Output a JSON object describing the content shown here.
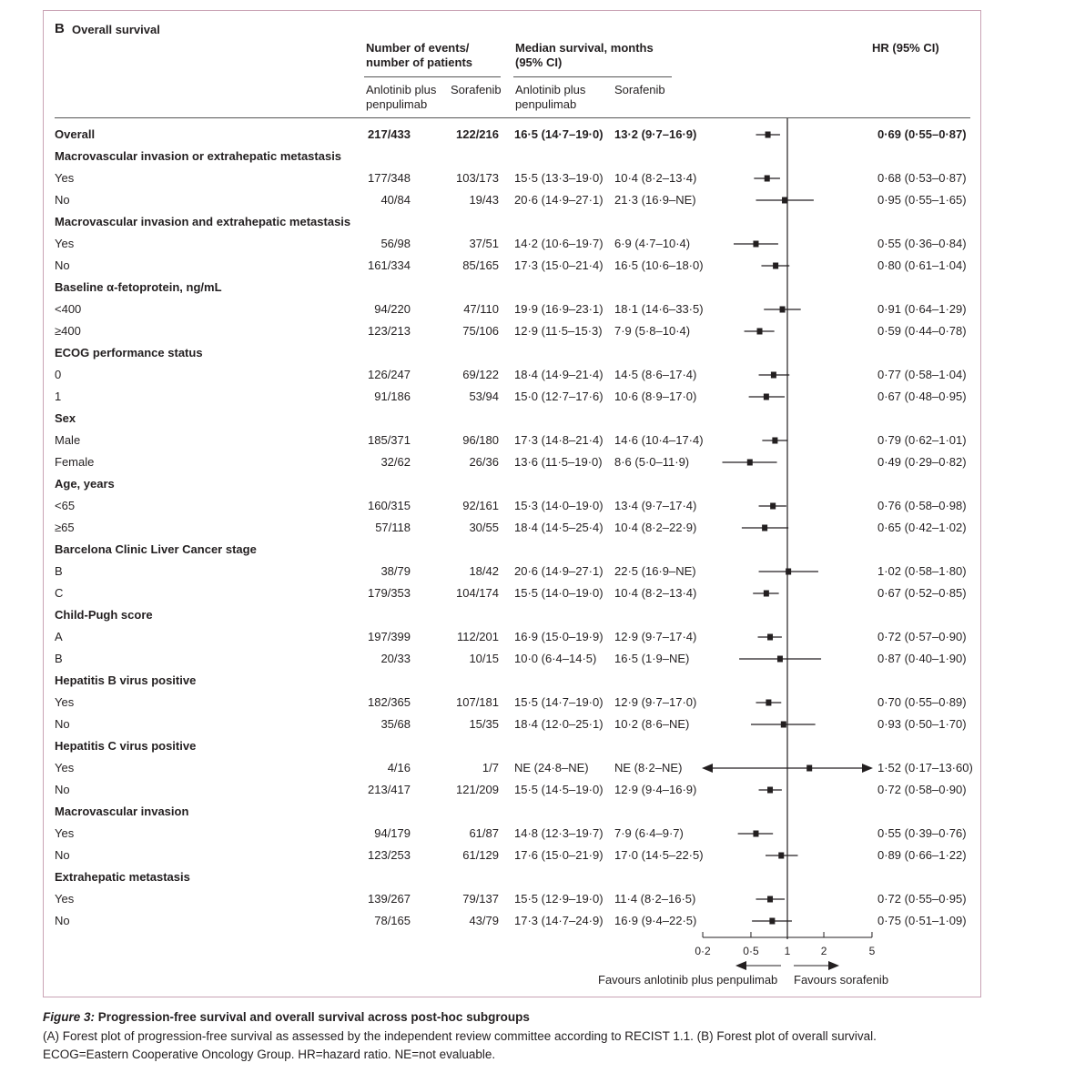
{
  "panel_label": "B",
  "panel_title": "Overall survival",
  "headers": {
    "events": "Number of events/ number of patients",
    "median": "Median survival, months (95% CI)",
    "hr": "HR (95% CI)",
    "arm_a": "Anlotinib plus penpulimab",
    "arm_b": "Sorafenib"
  },
  "chart_data": {
    "type": "forest",
    "x_scale": "log",
    "xlim": [
      0.2,
      5
    ],
    "reference_line": 1,
    "x_ticks": [
      "0·2",
      "0·5",
      "1",
      "2",
      "5"
    ],
    "x_tick_values": [
      0.2,
      0.5,
      1,
      2,
      5
    ],
    "favours_left": "Favours anlotinib plus penpulimab",
    "favours_right": "Favours sorafenib",
    "rows": [
      {
        "label": "Overall",
        "bold": true,
        "ev_a": "217/433",
        "ev_b": "122/216",
        "med_a": "16·5 (14·7–19·0)",
        "med_b": "13·2 (9·7–16·9)",
        "hr": 0.69,
        "lo": 0.55,
        "hi": 0.87,
        "hr_text": "0·69 (0·55–0·87)"
      },
      {
        "label": "Macrovascular invasion or extrahepatic metastasis",
        "header": true
      },
      {
        "label": "Yes",
        "ev_a": "177/348",
        "ev_b": "103/173",
        "med_a": "15·5 (13·3–19·0)",
        "med_b": "10·4 (8·2–13·4)",
        "hr": 0.68,
        "lo": 0.53,
        "hi": 0.87,
        "hr_text": "0·68 (0·53–0·87)"
      },
      {
        "label": "No",
        "ev_a": "40/84",
        "ev_b": "19/43",
        "med_a": "20·6 (14·9–27·1)",
        "med_b": "21·3 (16·9–NE)",
        "hr": 0.95,
        "lo": 0.55,
        "hi": 1.65,
        "hr_text": "0·95 (0·55–1·65)"
      },
      {
        "label": "Macrovascular invasion and extrahepatic metastasis",
        "header": true
      },
      {
        "label": "Yes",
        "ev_a": "56/98",
        "ev_b": "37/51",
        "med_a": "14·2 (10·6–19·7)",
        "med_b": "6·9 (4·7–10·4)",
        "hr": 0.55,
        "lo": 0.36,
        "hi": 0.84,
        "hr_text": "0·55 (0·36–0·84)"
      },
      {
        "label": "No",
        "ev_a": "161/334",
        "ev_b": "85/165",
        "med_a": "17·3 (15·0–21·4)",
        "med_b": "16·5 (10·6–18·0)",
        "hr": 0.8,
        "lo": 0.61,
        "hi": 1.04,
        "hr_text": "0·80 (0·61–1·04)"
      },
      {
        "label": "Baseline α-fetoprotein, ng/mL",
        "header": true
      },
      {
        "label": "<400",
        "ev_a": "94/220",
        "ev_b": "47/110",
        "med_a": "19·9 (16·9–23·1)",
        "med_b": "18·1 (14·6–33·5)",
        "hr": 0.91,
        "lo": 0.64,
        "hi": 1.29,
        "hr_text": "0·91 (0·64–1·29)"
      },
      {
        "label": "≥400",
        "ev_a": "123/213",
        "ev_b": "75/106",
        "med_a": "12·9 (11·5–15·3)",
        "med_b": "7·9 (5·8–10·4)",
        "hr": 0.59,
        "lo": 0.44,
        "hi": 0.78,
        "hr_text": "0·59 (0·44–0·78)"
      },
      {
        "label": "ECOG performance status",
        "header": true
      },
      {
        "label": "0",
        "ev_a": "126/247",
        "ev_b": "69/122",
        "med_a": "18·4 (14·9–21·4)",
        "med_b": "14·5 (8·6–17·4)",
        "hr": 0.77,
        "lo": 0.58,
        "hi": 1.04,
        "hr_text": "0·77 (0·58–1·04)"
      },
      {
        "label": "1",
        "ev_a": "91/186",
        "ev_b": "53/94",
        "med_a": "15·0 (12·7–17·6)",
        "med_b": "10·6 (8·9–17·0)",
        "hr": 0.67,
        "lo": 0.48,
        "hi": 0.95,
        "hr_text": "0·67 (0·48–0·95)"
      },
      {
        "label": "Sex",
        "header": true
      },
      {
        "label": "Male",
        "ev_a": "185/371",
        "ev_b": "96/180",
        "med_a": "17·3 (14·8–21·4)",
        "med_b": "14·6 (10·4–17·4)",
        "hr": 0.79,
        "lo": 0.62,
        "hi": 1.01,
        "hr_text": "0·79 (0·62–1·01)"
      },
      {
        "label": "Female",
        "ev_a": "32/62",
        "ev_b": "26/36",
        "med_a": "13·6 (11·5–19·0)",
        "med_b": "8·6 (5·0–11·9)",
        "hr": 0.49,
        "lo": 0.29,
        "hi": 0.82,
        "hr_text": "0·49 (0·29–0·82)"
      },
      {
        "label": "Age, years",
        "header": true
      },
      {
        "label": "<65",
        "ev_a": "160/315",
        "ev_b": "92/161",
        "med_a": "15·3 (14·0–19·0)",
        "med_b": "13·4 (9·7–17·4)",
        "hr": 0.76,
        "lo": 0.58,
        "hi": 0.98,
        "hr_text": "0·76 (0·58–0·98)"
      },
      {
        "label": "≥65",
        "ev_a": "57/118",
        "ev_b": "30/55",
        "med_a": "18·4 (14·5–25·4)",
        "med_b": "10·4 (8·2–22·9)",
        "hr": 0.65,
        "lo": 0.42,
        "hi": 1.02,
        "hr_text": "0·65 (0·42–1·02)"
      },
      {
        "label": "Barcelona Clinic Liver Cancer stage",
        "header": true
      },
      {
        "label": "B",
        "ev_a": "38/79",
        "ev_b": "18/42",
        "med_a": "20·6 (14·9–27·1)",
        "med_b": "22·5 (16·9–NE)",
        "hr": 1.02,
        "lo": 0.58,
        "hi": 1.8,
        "hr_text": "1·02 (0·58–1·80)"
      },
      {
        "label": "C",
        "ev_a": "179/353",
        "ev_b": "104/174",
        "med_a": "15·5 (14·0–19·0)",
        "med_b": "10·4 (8·2–13·4)",
        "hr": 0.67,
        "lo": 0.52,
        "hi": 0.85,
        "hr_text": "0·67 (0·52–0·85)"
      },
      {
        "label": "Child-Pugh score",
        "header": true
      },
      {
        "label": "A",
        "ev_a": "197/399",
        "ev_b": "112/201",
        "med_a": "16·9 (15·0–19·9)",
        "med_b": "12·9 (9·7–17·4)",
        "hr": 0.72,
        "lo": 0.57,
        "hi": 0.9,
        "hr_text": "0·72 (0·57–0·90)"
      },
      {
        "label": "B",
        "ev_a": "20/33",
        "ev_b": "10/15",
        "med_a": "10·0 (6·4–14·5)",
        "med_b": "16·5 (1·9–NE)",
        "hr": 0.87,
        "lo": 0.4,
        "hi": 1.9,
        "hr_text": "0·87 (0·40–1·90)"
      },
      {
        "label": "Hepatitis B virus positive",
        "header": true
      },
      {
        "label": "Yes",
        "ev_a": "182/365",
        "ev_b": "107/181",
        "med_a": "15·5 (14·7–19·0)",
        "med_b": "12·9 (9·7–17·0)",
        "hr": 0.7,
        "lo": 0.55,
        "hi": 0.89,
        "hr_text": "0·70 (0·55–0·89)"
      },
      {
        "label": "No",
        "ev_a": "35/68",
        "ev_b": "15/35",
        "med_a": "18·4 (12·0–25·1)",
        "med_b": "10·2 (8·6–NE)",
        "hr": 0.93,
        "lo": 0.5,
        "hi": 1.7,
        "hr_text": "0·93 (0·50–1·70)"
      },
      {
        "label": "Hepatitis C virus positive",
        "header": true
      },
      {
        "label": "Yes",
        "ev_a": "4/16",
        "ev_b": "1/7",
        "med_a": "NE (24·8–NE)",
        "med_b": "NE (8·2–NE)",
        "hr": 1.52,
        "lo": 0.17,
        "hi": 13.6,
        "hr_text": "1·52 (0·17–13·60)"
      },
      {
        "label": "No",
        "ev_a": "213/417",
        "ev_b": "121/209",
        "med_a": "15·5 (14·5–19·0)",
        "med_b": "12·9 (9·4–16·9)",
        "hr": 0.72,
        "lo": 0.58,
        "hi": 0.9,
        "hr_text": "0·72 (0·58–0·90)"
      },
      {
        "label": "Macrovascular invasion",
        "header": true
      },
      {
        "label": "Yes",
        "ev_a": "94/179",
        "ev_b": "61/87",
        "med_a": "14·8 (12·3–19·7)",
        "med_b": "7·9 (6·4–9·7)",
        "hr": 0.55,
        "lo": 0.39,
        "hi": 0.76,
        "hr_text": "0·55 (0·39–0·76)"
      },
      {
        "label": "No",
        "ev_a": "123/253",
        "ev_b": "61/129",
        "med_a": "17·6 (15·0–21·9)",
        "med_b": "17·0 (14·5–22·5)",
        "hr": 0.89,
        "lo": 0.66,
        "hi": 1.22,
        "hr_text": "0·89 (0·66–1·22)"
      },
      {
        "label": "Extrahepatic metastasis",
        "header": true
      },
      {
        "label": "Yes",
        "ev_a": "139/267",
        "ev_b": "79/137",
        "med_a": "15·5 (12·9–19·0)",
        "med_b": "11·4 (8·2–16·5)",
        "hr": 0.72,
        "lo": 0.55,
        "hi": 0.95,
        "hr_text": "0·72 (0·55–0·95)"
      },
      {
        "label": "No",
        "ev_a": "78/165",
        "ev_b": "43/79",
        "med_a": "17·3 (14·7–24·9)",
        "med_b": "16·9 (9·4–22·5)",
        "hr": 0.75,
        "lo": 0.51,
        "hi": 1.09,
        "hr_text": "0·75 (0·51–1·09)"
      }
    ]
  },
  "caption": {
    "title": "Figure 3: Progression-free survival and overall survival across post-hoc subgroups",
    "title_prefix": "Figure 3:",
    "title_rest": " Progression-free survival and overall survival across post-hoc subgroups",
    "line1": "(A) Forest plot of progression-free survival as assessed by the independent review committee according to RECIST 1.1. (B) Forest plot of overall survival.",
    "line2": "ECOG=Eastern Cooperative Oncology Group. HR=hazard ratio. NE=not evaluable."
  }
}
